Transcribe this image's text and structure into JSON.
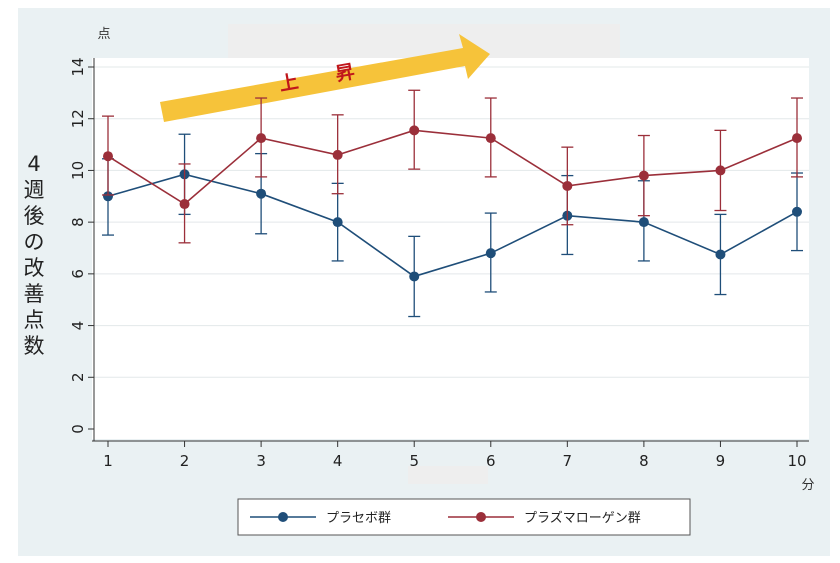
{
  "chart_data": {
    "type": "line",
    "title": "",
    "y_unit": "点",
    "x_unit": "分",
    "ylabel": "4週後の改善点数",
    "xlabel": "",
    "x": [
      1,
      2,
      3,
      4,
      5,
      6,
      7,
      8,
      9,
      10
    ],
    "ylim": [
      0,
      14
    ],
    "xlim": [
      1,
      10
    ],
    "y_ticks": [
      0,
      2,
      4,
      6,
      8,
      10,
      12,
      14
    ],
    "grid": true,
    "legend_position": "bottom",
    "annotation": {
      "text": "上　　昇",
      "color_arrow": "#f6c33a",
      "color_text": "#c0161b"
    },
    "series": [
      {
        "name": "プラセボ群",
        "color": "#1f4e79",
        "values": [
          9.0,
          9.85,
          9.1,
          8.0,
          5.9,
          6.8,
          8.25,
          8.0,
          6.75,
          8.4
        ],
        "err_low": [
          7.5,
          8.3,
          7.55,
          6.5,
          4.35,
          5.3,
          6.75,
          6.5,
          5.2,
          6.9
        ],
        "err_high": [
          10.45,
          11.4,
          10.65,
          9.5,
          7.45,
          8.35,
          9.8,
          9.6,
          8.3,
          9.9
        ]
      },
      {
        "name": "プラズマローゲン群",
        "color": "#9b2f3a",
        "values": [
          10.55,
          8.7,
          11.25,
          10.6,
          11.55,
          11.25,
          9.4,
          9.8,
          10.0,
          11.25
        ],
        "err_low": [
          9.05,
          7.2,
          9.75,
          9.1,
          10.05,
          9.75,
          7.9,
          8.25,
          8.45,
          9.75
        ],
        "err_high": [
          12.1,
          10.25,
          12.8,
          12.15,
          13.1,
          12.8,
          10.9,
          11.35,
          11.55,
          12.8
        ]
      }
    ]
  }
}
